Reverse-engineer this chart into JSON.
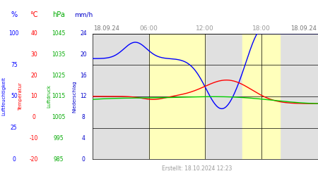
{
  "footer": "Erstellt: 18.10.2024 12:23",
  "bg_gray": "#e0e0e0",
  "bg_yellow": "#ffffbb",
  "grid_color": "#000000",
  "blue_color": "#0000ff",
  "red_color": "#ff0000",
  "green_color": "#00cc00",
  "pct_ticks": [
    0,
    25,
    50,
    75,
    100
  ],
  "temp_ticks": [
    -20,
    -10,
    0,
    10,
    20,
    30,
    40
  ],
  "hpa_ticks": [
    985,
    995,
    1005,
    1015,
    1025,
    1035,
    1045
  ],
  "mmh_ticks": [
    0,
    4,
    8,
    12,
    16,
    20,
    24
  ],
  "temp_min": -20,
  "temp_max": 40,
  "hpa_min": 985,
  "hpa_max": 1045,
  "mmh_min": 0,
  "mmh_max": 24,
  "pct_min": 0,
  "pct_max": 100
}
